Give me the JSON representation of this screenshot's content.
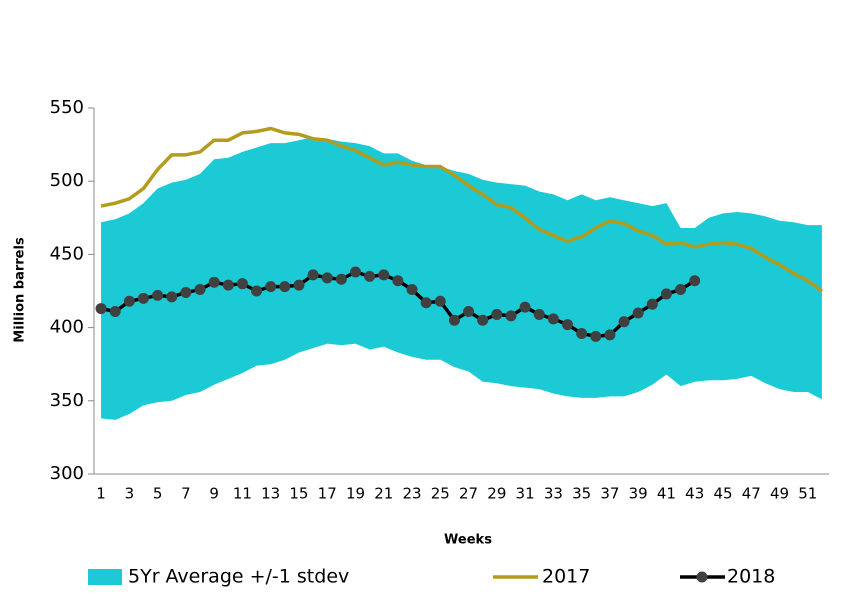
{
  "chart_data": {
    "type": "line",
    "xlabel": "Weeks",
    "ylabel": "Million barrels",
    "categories": [
      1,
      null,
      3,
      null,
      5,
      null,
      7,
      null,
      9,
      null,
      11,
      null,
      13,
      null,
      15,
      null,
      17,
      null,
      19,
      null,
      21,
      null,
      23,
      null,
      25,
      null,
      27,
      null,
      29,
      null,
      31,
      null,
      33,
      null,
      35,
      null,
      37,
      null,
      39,
      null,
      41,
      null,
      43,
      null,
      45,
      null,
      47,
      null,
      49,
      null,
      51,
      null
    ],
    "ylim": [
      300,
      550
    ],
    "yticks": [
      300,
      350,
      400,
      450,
      500,
      550
    ],
    "grid": false,
    "legend": "bottom",
    "band": {
      "name": "5Yr Average +/-1 stdev",
      "color": "#1ccad6",
      "upper": [
        472,
        474,
        478,
        485,
        495,
        499,
        501,
        505,
        515,
        516,
        520,
        523,
        526,
        526,
        528,
        530,
        529,
        527,
        526,
        524,
        519,
        519,
        514,
        511,
        510,
        507,
        505,
        501,
        499,
        498,
        497,
        493,
        491,
        487,
        491,
        487,
        489,
        487,
        485,
        483,
        485,
        468,
        468,
        475,
        478,
        479,
        478,
        476,
        473,
        472,
        470,
        470
      ],
      "lower": [
        338,
        337,
        341,
        347,
        349,
        350,
        354,
        356,
        361,
        365,
        369,
        374,
        375,
        378,
        383,
        386,
        389,
        388,
        389,
        385,
        387,
        383,
        380,
        378,
        378,
        373,
        370,
        363,
        362,
        360,
        359,
        358,
        355,
        353,
        352,
        352,
        353,
        353,
        356,
        361,
        368,
        360,
        363,
        364,
        364,
        365,
        367,
        362,
        358,
        356,
        356,
        351
      ]
    },
    "series": [
      {
        "name": "2017",
        "color": "#b39b1e",
        "markers": false,
        "values": [
          483,
          485,
          488,
          495,
          508,
          518,
          518,
          520,
          528,
          528,
          533,
          534,
          536,
          533,
          532,
          529,
          528,
          524,
          521,
          516,
          511,
          513,
          511,
          510,
          510,
          504,
          497,
          491,
          484,
          482,
          475,
          467,
          463,
          459,
          462,
          468,
          473,
          471,
          466,
          463,
          457,
          458,
          455,
          457,
          458,
          457,
          454,
          448,
          443,
          437,
          432,
          425
        ]
      },
      {
        "name": "2018",
        "color": "#000000",
        "marker_color": "#404040",
        "markers": true,
        "values": [
          413,
          411,
          418,
          420,
          422,
          421,
          424,
          426,
          431,
          429,
          430,
          425,
          428,
          428,
          429,
          436,
          434,
          433,
          438,
          435,
          436,
          432,
          426,
          417,
          418,
          405,
          411,
          405,
          409,
          408,
          414,
          409,
          406,
          402,
          396,
          394,
          395,
          404,
          410,
          416,
          423,
          426,
          432,
          null,
          null,
          null,
          null,
          null,
          null,
          null,
          null,
          null
        ]
      }
    ]
  }
}
